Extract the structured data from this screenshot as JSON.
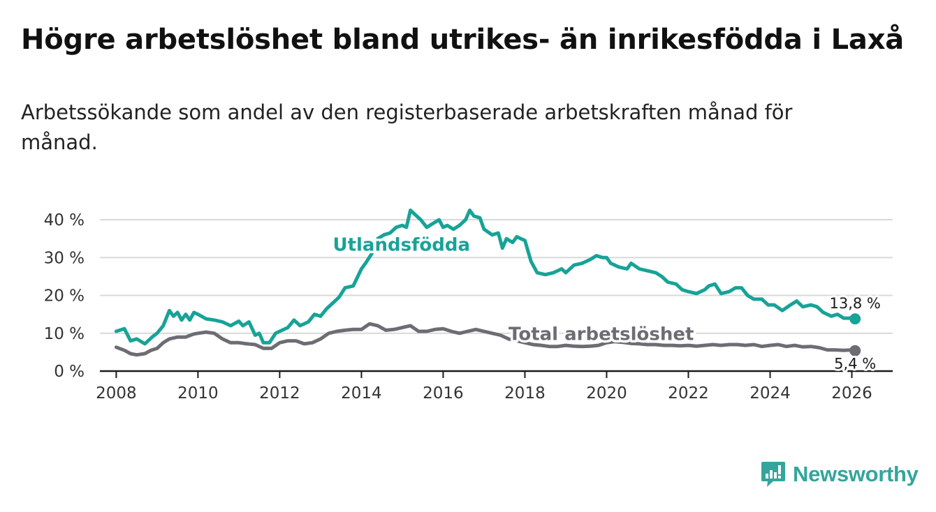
{
  "title": "Högre arbetslöshet bland utrikes- än inrikesfödda i Laxå",
  "subtitle": "Arbetssökande som andel av den registerbaserade arbetskraften månad för månad.",
  "colors": {
    "utlandsfodda": "#17a397",
    "total": "#6e6c73",
    "grid": "#d9d9d9",
    "axis": "#1a1a1a",
    "brand": "#33a59c"
  },
  "brand": {
    "name": "Newsworthy",
    "icon": "newsworthy-logo-icon"
  },
  "chart_data": {
    "type": "line",
    "title": "Högre arbetslöshet bland utrikes- än inrikesfödda i Laxå",
    "subtitle": "Arbetssökande som andel av den registerbaserade arbetskraften månad för månad.",
    "xlabel": "",
    "ylabel": "",
    "xlim": [
      2007.6,
      2027.0
    ],
    "ylim": [
      0,
      40
    ],
    "x_ticks": [
      2008,
      2010,
      2012,
      2014,
      2016,
      2018,
      2020,
      2022,
      2024,
      2026
    ],
    "x_tick_labels": [
      "2008",
      "2010",
      "2012",
      "2014",
      "2016",
      "2018",
      "2020",
      "2022",
      "2024",
      "2026"
    ],
    "y_ticks": [
      0,
      10,
      20,
      30,
      40
    ],
    "y_tick_labels": [
      "0 %",
      "10 %",
      "20 %",
      "30 %",
      "40 %"
    ],
    "grid": true,
    "legend": "inline labels",
    "series": [
      {
        "name": "Utlandsfödda",
        "color": "#17a397",
        "end_label": "13,8 %",
        "points": [
          [
            2008.0,
            10.5
          ],
          [
            2008.2,
            11.2
          ],
          [
            2008.35,
            8.0
          ],
          [
            2008.5,
            8.5
          ],
          [
            2008.7,
            7.2
          ],
          [
            2008.9,
            9.2
          ],
          [
            2009.0,
            10.0
          ],
          [
            2009.15,
            12.0
          ],
          [
            2009.3,
            16.0
          ],
          [
            2009.4,
            14.5
          ],
          [
            2009.5,
            15.5
          ],
          [
            2009.6,
            13.5
          ],
          [
            2009.7,
            15.0
          ],
          [
            2009.8,
            13.5
          ],
          [
            2009.9,
            15.5
          ],
          [
            2010.0,
            15.0
          ],
          [
            2010.2,
            13.8
          ],
          [
            2010.4,
            13.5
          ],
          [
            2010.6,
            13.0
          ],
          [
            2010.8,
            12.0
          ],
          [
            2011.0,
            13.2
          ],
          [
            2011.1,
            12.0
          ],
          [
            2011.25,
            13.0
          ],
          [
            2011.4,
            9.5
          ],
          [
            2011.5,
            10.0
          ],
          [
            2011.6,
            7.5
          ],
          [
            2011.75,
            7.5
          ],
          [
            2011.9,
            10.0
          ],
          [
            2012.0,
            10.5
          ],
          [
            2012.2,
            11.5
          ],
          [
            2012.35,
            13.5
          ],
          [
            2012.5,
            12.0
          ],
          [
            2012.7,
            13.0
          ],
          [
            2012.85,
            15.0
          ],
          [
            2013.0,
            14.5
          ],
          [
            2013.15,
            16.5
          ],
          [
            2013.3,
            18.0
          ],
          [
            2013.45,
            19.5
          ],
          [
            2013.6,
            22.0
          ],
          [
            2013.8,
            22.5
          ],
          [
            2014.0,
            27.0
          ],
          [
            2014.1,
            28.5
          ],
          [
            2014.25,
            31.0
          ],
          [
            2014.4,
            35.0
          ],
          [
            2014.55,
            36.0
          ],
          [
            2014.7,
            36.5
          ],
          [
            2014.85,
            38.0
          ],
          [
            2015.0,
            38.5
          ],
          [
            2015.1,
            38.0
          ],
          [
            2015.2,
            42.5
          ],
          [
            2015.3,
            41.5
          ],
          [
            2015.45,
            40.0
          ],
          [
            2015.6,
            38.0
          ],
          [
            2015.75,
            39.0
          ],
          [
            2015.9,
            40.0
          ],
          [
            2016.0,
            38.0
          ],
          [
            2016.1,
            38.5
          ],
          [
            2016.25,
            37.5
          ],
          [
            2016.4,
            38.5
          ],
          [
            2016.55,
            40.0
          ],
          [
            2016.65,
            42.5
          ],
          [
            2016.75,
            41.0
          ],
          [
            2016.9,
            40.5
          ],
          [
            2017.0,
            37.5
          ],
          [
            2017.2,
            36.0
          ],
          [
            2017.35,
            36.5
          ],
          [
            2017.45,
            32.5
          ],
          [
            2017.55,
            35.0
          ],
          [
            2017.7,
            34.0
          ],
          [
            2017.8,
            35.5
          ],
          [
            2017.9,
            35.0
          ],
          [
            2018.0,
            34.5
          ],
          [
            2018.15,
            29.0
          ],
          [
            2018.3,
            26.0
          ],
          [
            2018.5,
            25.5
          ],
          [
            2018.7,
            26.0
          ],
          [
            2018.9,
            27.0
          ],
          [
            2019.0,
            26.0
          ],
          [
            2019.2,
            28.0
          ],
          [
            2019.4,
            28.5
          ],
          [
            2019.6,
            29.5
          ],
          [
            2019.75,
            30.5
          ],
          [
            2019.9,
            30.0
          ],
          [
            2020.0,
            30.0
          ],
          [
            2020.1,
            28.5
          ],
          [
            2020.3,
            27.5
          ],
          [
            2020.5,
            27.0
          ],
          [
            2020.6,
            28.5
          ],
          [
            2020.8,
            27.0
          ],
          [
            2021.0,
            26.5
          ],
          [
            2021.2,
            26.0
          ],
          [
            2021.35,
            25.0
          ],
          [
            2021.5,
            23.5
          ],
          [
            2021.7,
            23.0
          ],
          [
            2021.85,
            21.5
          ],
          [
            2022.0,
            21.0
          ],
          [
            2022.2,
            20.5
          ],
          [
            2022.4,
            21.5
          ],
          [
            2022.5,
            22.5
          ],
          [
            2022.65,
            23.0
          ],
          [
            2022.8,
            20.5
          ],
          [
            2023.0,
            21.0
          ],
          [
            2023.15,
            22.0
          ],
          [
            2023.3,
            22.0
          ],
          [
            2023.45,
            20.0
          ],
          [
            2023.6,
            19.0
          ],
          [
            2023.8,
            19.0
          ],
          [
            2023.95,
            17.5
          ],
          [
            2024.1,
            17.5
          ],
          [
            2024.3,
            16.0
          ],
          [
            2024.5,
            17.5
          ],
          [
            2024.65,
            18.5
          ],
          [
            2024.8,
            17.0
          ],
          [
            2025.0,
            17.5
          ],
          [
            2025.15,
            17.0
          ],
          [
            2025.3,
            15.5
          ],
          [
            2025.5,
            14.5
          ],
          [
            2025.65,
            15.0
          ],
          [
            2025.8,
            14.0
          ],
          [
            2025.95,
            14.0
          ],
          [
            2026.08,
            13.8
          ]
        ]
      },
      {
        "name": "Total arbetslöshet",
        "color": "#6e6c73",
        "end_label": "5,4 %",
        "points": [
          [
            2008.0,
            6.3
          ],
          [
            2008.2,
            5.5
          ],
          [
            2008.35,
            4.6
          ],
          [
            2008.5,
            4.3
          ],
          [
            2008.7,
            4.6
          ],
          [
            2008.85,
            5.5
          ],
          [
            2009.0,
            6.0
          ],
          [
            2009.15,
            7.5
          ],
          [
            2009.3,
            8.5
          ],
          [
            2009.5,
            9.0
          ],
          [
            2009.7,
            9.0
          ],
          [
            2009.9,
            9.8
          ],
          [
            2010.0,
            10.0
          ],
          [
            2010.2,
            10.3
          ],
          [
            2010.4,
            10.0
          ],
          [
            2010.6,
            8.5
          ],
          [
            2010.8,
            7.5
          ],
          [
            2011.0,
            7.5
          ],
          [
            2011.2,
            7.2
          ],
          [
            2011.4,
            7.0
          ],
          [
            2011.6,
            6.0
          ],
          [
            2011.8,
            6.0
          ],
          [
            2012.0,
            7.5
          ],
          [
            2012.2,
            8.0
          ],
          [
            2012.4,
            8.0
          ],
          [
            2012.6,
            7.2
          ],
          [
            2012.8,
            7.5
          ],
          [
            2013.0,
            8.5
          ],
          [
            2013.2,
            10.0
          ],
          [
            2013.4,
            10.5
          ],
          [
            2013.6,
            10.8
          ],
          [
            2013.8,
            11.0
          ],
          [
            2014.0,
            11.0
          ],
          [
            2014.2,
            12.5
          ],
          [
            2014.4,
            12.0
          ],
          [
            2014.6,
            10.8
          ],
          [
            2014.8,
            11.0
          ],
          [
            2015.0,
            11.5
          ],
          [
            2015.2,
            12.0
          ],
          [
            2015.4,
            10.5
          ],
          [
            2015.6,
            10.5
          ],
          [
            2015.8,
            11.0
          ],
          [
            2016.0,
            11.2
          ],
          [
            2016.2,
            10.5
          ],
          [
            2016.4,
            10.0
          ],
          [
            2016.6,
            10.5
          ],
          [
            2016.8,
            11.0
          ],
          [
            2017.0,
            10.5
          ],
          [
            2017.2,
            10.0
          ],
          [
            2017.4,
            9.5
          ],
          [
            2017.6,
            8.5
          ],
          [
            2017.8,
            8.0
          ],
          [
            2018.0,
            7.5
          ],
          [
            2018.2,
            7.0
          ],
          [
            2018.4,
            6.8
          ],
          [
            2018.6,
            6.5
          ],
          [
            2018.8,
            6.5
          ],
          [
            2019.0,
            6.8
          ],
          [
            2019.2,
            6.6
          ],
          [
            2019.4,
            6.5
          ],
          [
            2019.6,
            6.6
          ],
          [
            2019.8,
            6.8
          ],
          [
            2020.0,
            7.5
          ],
          [
            2020.2,
            7.8
          ],
          [
            2020.4,
            7.6
          ],
          [
            2020.6,
            7.3
          ],
          [
            2020.8,
            7.2
          ],
          [
            2021.0,
            7.0
          ],
          [
            2021.2,
            7.0
          ],
          [
            2021.4,
            6.8
          ],
          [
            2021.6,
            6.8
          ],
          [
            2021.8,
            6.7
          ],
          [
            2022.0,
            6.8
          ],
          [
            2022.2,
            6.6
          ],
          [
            2022.4,
            6.8
          ],
          [
            2022.6,
            7.0
          ],
          [
            2022.8,
            6.8
          ],
          [
            2023.0,
            7.0
          ],
          [
            2023.2,
            7.0
          ],
          [
            2023.4,
            6.8
          ],
          [
            2023.6,
            7.0
          ],
          [
            2023.8,
            6.5
          ],
          [
            2024.0,
            6.8
          ],
          [
            2024.2,
            7.0
          ],
          [
            2024.4,
            6.5
          ],
          [
            2024.6,
            6.8
          ],
          [
            2024.8,
            6.4
          ],
          [
            2025.0,
            6.5
          ],
          [
            2025.2,
            6.2
          ],
          [
            2025.4,
            5.6
          ],
          [
            2025.6,
            5.6
          ],
          [
            2025.8,
            5.5
          ],
          [
            2026.0,
            5.6
          ],
          [
            2026.08,
            5.4
          ]
        ]
      }
    ]
  }
}
